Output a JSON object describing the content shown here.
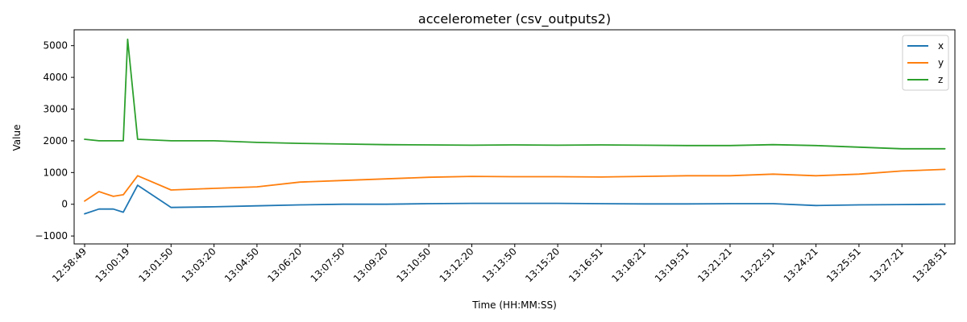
{
  "chart_data": {
    "type": "line",
    "title": "accelerometer (csv_outputs2)",
    "xlabel": "Time (HH:MM:SS)",
    "ylabel": "Value",
    "ylim": [
      -1250,
      5500
    ],
    "yticks": [
      -1000,
      0,
      1000,
      2000,
      3000,
      4000,
      5000
    ],
    "xlim": [
      "12:58:27",
      "13:29:12"
    ],
    "xticks": [
      "12:58:49",
      "13:00:19",
      "13:01:50",
      "13:03:20",
      "13:04:50",
      "13:06:20",
      "13:07:50",
      "13:09:20",
      "13:10:50",
      "13:12:20",
      "13:13:50",
      "13:15:20",
      "13:16:51",
      "13:18:21",
      "13:19:51",
      "13:21:21",
      "13:22:51",
      "13:24:21",
      "13:25:51",
      "13:27:21",
      "13:28:51"
    ],
    "grid": false,
    "legend_position": "top-right",
    "series": [
      {
        "name": "x",
        "color": "#1f77b4",
        "x": [
          "12:58:49",
          "12:59:19",
          "12:59:49",
          "13:00:10",
          "13:00:40",
          "13:01:50",
          "13:03:20",
          "13:04:50",
          "13:06:20",
          "13:07:50",
          "13:09:20",
          "13:10:50",
          "13:12:20",
          "13:13:50",
          "13:15:20",
          "13:16:51",
          "13:18:21",
          "13:19:51",
          "13:21:21",
          "13:22:51",
          "13:24:21",
          "13:25:51",
          "13:27:21",
          "13:28:51"
        ],
        "y": [
          -300,
          -150,
          -150,
          -250,
          600,
          -100,
          -80,
          -50,
          -20,
          0,
          0,
          20,
          30,
          30,
          30,
          20,
          10,
          10,
          20,
          20,
          -40,
          -20,
          -10,
          0
        ]
      },
      {
        "name": "y",
        "color": "#ff7f0e",
        "x": [
          "12:58:49",
          "12:59:19",
          "12:59:49",
          "13:00:10",
          "13:00:40",
          "13:01:50",
          "13:03:20",
          "13:04:50",
          "13:06:20",
          "13:07:50",
          "13:09:20",
          "13:10:50",
          "13:12:20",
          "13:13:50",
          "13:15:20",
          "13:16:51",
          "13:18:21",
          "13:19:51",
          "13:21:21",
          "13:22:51",
          "13:24:21",
          "13:25:51",
          "13:27:21",
          "13:28:51"
        ],
        "y": [
          100,
          400,
          250,
          300,
          900,
          450,
          500,
          550,
          700,
          750,
          800,
          850,
          880,
          870,
          870,
          860,
          880,
          900,
          900,
          950,
          900,
          950,
          1050,
          1100
        ]
      },
      {
        "name": "z",
        "color": "#2ca02c",
        "x": [
          "12:58:49",
          "12:59:19",
          "12:59:49",
          "13:00:10",
          "13:00:19",
          "13:00:40",
          "13:01:50",
          "13:03:20",
          "13:04:50",
          "13:06:20",
          "13:07:50",
          "13:09:20",
          "13:10:50",
          "13:12:20",
          "13:13:50",
          "13:15:20",
          "13:16:51",
          "13:18:21",
          "13:19:51",
          "13:21:21",
          "13:22:51",
          "13:24:21",
          "13:25:51",
          "13:27:21",
          "13:28:51"
        ],
        "y": [
          2050,
          2000,
          2000,
          2000,
          5200,
          2050,
          2000,
          2000,
          1950,
          1920,
          1900,
          1880,
          1870,
          1860,
          1870,
          1860,
          1870,
          1860,
          1850,
          1850,
          1880,
          1850,
          1800,
          1750,
          1750
        ]
      }
    ]
  }
}
